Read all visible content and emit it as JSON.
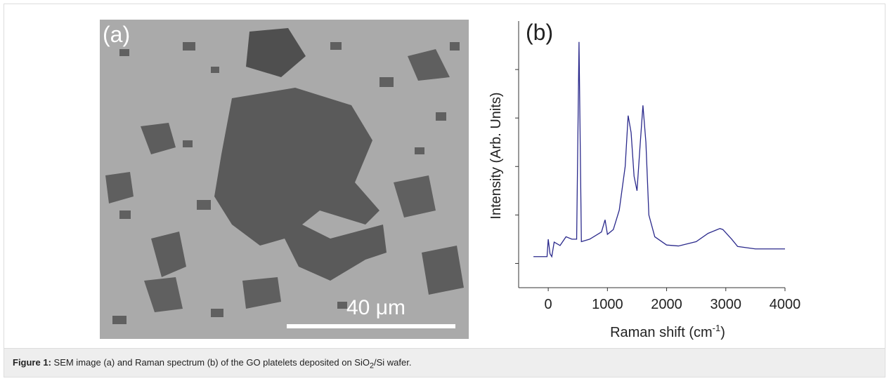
{
  "image_panel": {
    "label": "(a)",
    "scale_bar": "40 μm"
  },
  "chart_data": {
    "type": "line",
    "label": "(b)",
    "x_label": "Raman shift (cm",
    "x_label_sup": "-1",
    "x_label_end": ")",
    "y_label": "Intensity (Arb. Units)",
    "color": "#2b2a8c",
    "x": [
      -250,
      -20,
      0,
      30,
      60,
      100,
      200,
      300,
      400,
      480,
      520,
      560,
      700,
      900,
      960,
      1000,
      1100,
      1200,
      1300,
      1350,
      1400,
      1450,
      1500,
      1550,
      1600,
      1650,
      1700,
      1800,
      2000,
      2200,
      2500,
      2700,
      2900,
      2950,
      3100,
      3200,
      3500,
      4000
    ],
    "values": [
      0.14,
      0.14,
      0.5,
      0.2,
      0.14,
      0.44,
      0.37,
      0.55,
      0.5,
      0.5,
      4.57,
      0.45,
      0.5,
      0.65,
      0.9,
      0.6,
      0.7,
      1.1,
      2.0,
      3.05,
      2.7,
      1.8,
      1.5,
      2.4,
      3.26,
      2.5,
      1.0,
      0.55,
      0.38,
      0.36,
      0.45,
      0.62,
      0.72,
      0.7,
      0.5,
      0.35,
      0.3,
      0.3
    ],
    "xlim": [
      -500,
      4000
    ],
    "xticks": [
      0,
      1000,
      2000,
      3000,
      4000
    ],
    "ylim": [
      -0.5,
      5
    ],
    "yticks": [
      0,
      1,
      2,
      3,
      4
    ],
    "ytick_labels": false
  },
  "caption": {
    "label": "Figure 1:",
    "text": " SEM image (a) and Raman spectrum (b) of the GO platelets deposited on SiO",
    "sub": "2",
    "text_end": "/Si wafer."
  }
}
